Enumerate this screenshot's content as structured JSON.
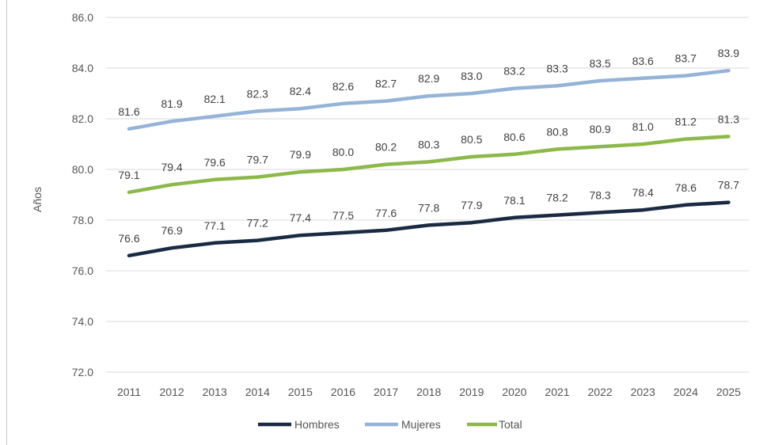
{
  "chart_data": {
    "type": "line",
    "title": "",
    "xlabel": "",
    "ylabel": "Años",
    "ylim": [
      72.0,
      86.0
    ],
    "yticks": [
      "72.0",
      "74.0",
      "76.0",
      "78.0",
      "80.0",
      "82.0",
      "84.0",
      "86.0"
    ],
    "grid": "horizontal",
    "legend_position": "bottom",
    "categories": [
      "2011",
      "2012",
      "2013",
      "2014",
      "2015",
      "2016",
      "2017",
      "2018",
      "2019",
      "2020",
      "2021",
      "2022",
      "2023",
      "2024",
      "2025"
    ],
    "series": [
      {
        "name": "Hombres",
        "color": "#1b2a43",
        "values": [
          76.6,
          76.9,
          77.1,
          77.2,
          77.4,
          77.5,
          77.6,
          77.8,
          77.9,
          78.1,
          78.2,
          78.3,
          78.4,
          78.6,
          78.7
        ],
        "labels": [
          "76.6",
          "76.9",
          "77.1",
          "77.2",
          "77.4",
          "77.5",
          "77.6",
          "77.8",
          "77.9",
          "78.1",
          "78.2",
          "78.3",
          "78.4",
          "78.6",
          "78.7"
        ]
      },
      {
        "name": "Mujeres",
        "color": "#95b3d7",
        "values": [
          81.6,
          81.9,
          82.1,
          82.3,
          82.4,
          82.6,
          82.7,
          82.9,
          83.0,
          83.2,
          83.3,
          83.5,
          83.6,
          83.7,
          83.9
        ],
        "labels": [
          "81.6",
          "81.9",
          "82.1",
          "82.3",
          "82.4",
          "82.6",
          "82.7",
          "82.9",
          "83.0",
          "83.2",
          "83.3",
          "83.5",
          "83.6",
          "83.7",
          "83.9"
        ]
      },
      {
        "name": "Total",
        "color": "#8db84a",
        "values": [
          79.1,
          79.4,
          79.6,
          79.7,
          79.9,
          80.0,
          80.2,
          80.3,
          80.5,
          80.6,
          80.8,
          80.9,
          81.0,
          81.2,
          81.3
        ],
        "labels": [
          "79.1",
          "79.4",
          "79.6",
          "79.7",
          "79.9",
          "80.0",
          "80.2",
          "80.3",
          "80.5",
          "80.6",
          "80.8",
          "80.9",
          "81.0",
          "81.2",
          "81.3"
        ]
      }
    ]
  }
}
